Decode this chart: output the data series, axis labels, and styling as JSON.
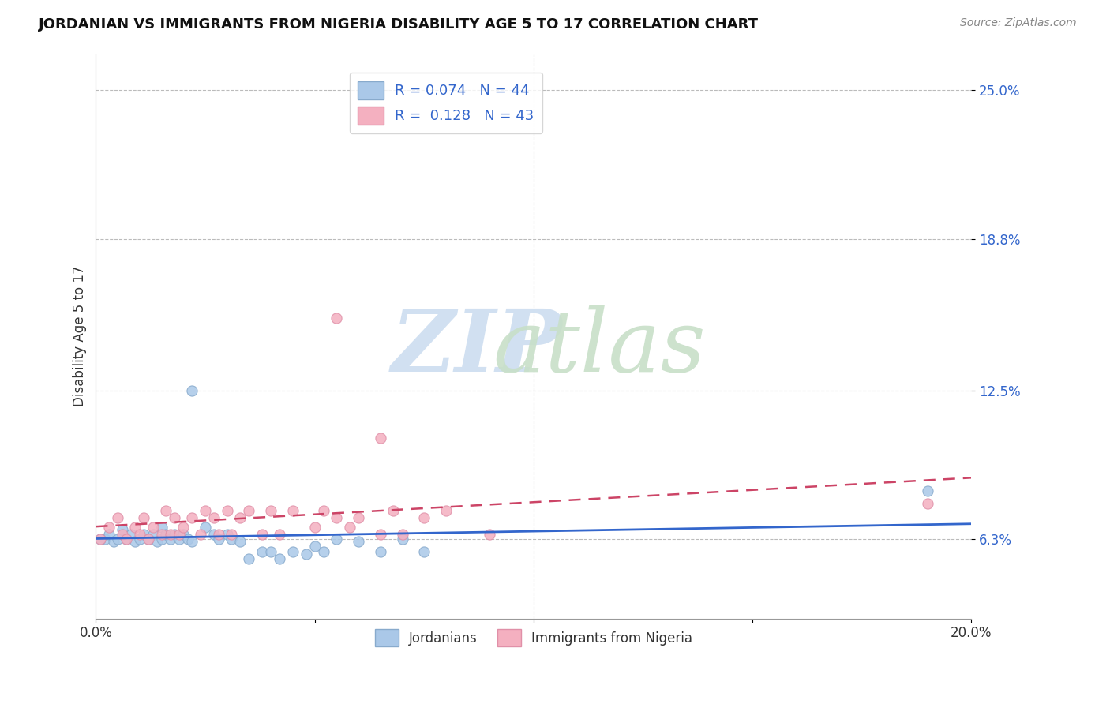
{
  "title": "JORDANIAN VS IMMIGRANTS FROM NIGERIA DISABILITY AGE 5 TO 17 CORRELATION CHART",
  "source": "Source: ZipAtlas.com",
  "ylabel": "Disability Age 5 to 17",
  "xmin": 0.0,
  "xmax": 0.2,
  "ymin": 0.03,
  "ymax": 0.265,
  "yticks": [
    0.063,
    0.125,
    0.188,
    0.25
  ],
  "ytick_labels": [
    "6.3%",
    "12.5%",
    "18.8%",
    "25.0%"
  ],
  "xticks": [
    0.0,
    0.05,
    0.1,
    0.15,
    0.2
  ],
  "xtick_labels": [
    "0.0%",
    "",
    "",
    "",
    "20.0%"
  ],
  "legend_label1": "Jordanians",
  "legend_label2": "Immigrants from Nigeria",
  "blue_r": "0.074",
  "blue_n": "44",
  "pink_r": "0.128",
  "pink_n": "43",
  "blue_scatter_x": [
    0.002,
    0.003,
    0.004,
    0.005,
    0.006,
    0.007,
    0.008,
    0.009,
    0.01,
    0.011,
    0.012,
    0.013,
    0.014,
    0.015,
    0.015,
    0.016,
    0.017,
    0.018,
    0.019,
    0.02,
    0.021,
    0.022,
    0.025,
    0.027,
    0.028,
    0.03,
    0.031,
    0.033,
    0.035,
    0.038,
    0.04,
    0.042,
    0.045,
    0.048,
    0.05,
    0.052,
    0.055,
    0.06,
    0.065,
    0.07,
    0.075,
    0.022,
    0.19,
    0.001
  ],
  "blue_scatter_y": [
    0.063,
    0.065,
    0.062,
    0.063,
    0.067,
    0.063,
    0.065,
    0.062,
    0.063,
    0.065,
    0.063,
    0.065,
    0.062,
    0.068,
    0.063,
    0.065,
    0.063,
    0.065,
    0.063,
    0.065,
    0.063,
    0.062,
    0.068,
    0.065,
    0.063,
    0.065,
    0.063,
    0.062,
    0.055,
    0.058,
    0.058,
    0.055,
    0.058,
    0.057,
    0.06,
    0.058,
    0.063,
    0.062,
    0.058,
    0.063,
    0.058,
    0.125,
    0.083,
    0.063
  ],
  "pink_scatter_x": [
    0.001,
    0.003,
    0.005,
    0.006,
    0.007,
    0.009,
    0.01,
    0.011,
    0.012,
    0.013,
    0.015,
    0.016,
    0.017,
    0.018,
    0.019,
    0.02,
    0.022,
    0.024,
    0.025,
    0.027,
    0.028,
    0.03,
    0.031,
    0.033,
    0.035,
    0.038,
    0.04,
    0.042,
    0.045,
    0.05,
    0.052,
    0.055,
    0.058,
    0.06,
    0.065,
    0.068,
    0.07,
    0.075,
    0.08,
    0.09,
    0.055,
    0.19,
    0.065
  ],
  "pink_scatter_y": [
    0.063,
    0.068,
    0.072,
    0.065,
    0.063,
    0.068,
    0.065,
    0.072,
    0.063,
    0.068,
    0.065,
    0.075,
    0.065,
    0.072,
    0.065,
    0.068,
    0.072,
    0.065,
    0.075,
    0.072,
    0.065,
    0.075,
    0.065,
    0.072,
    0.075,
    0.065,
    0.075,
    0.065,
    0.075,
    0.068,
    0.075,
    0.072,
    0.068,
    0.072,
    0.065,
    0.075,
    0.065,
    0.072,
    0.075,
    0.065,
    0.155,
    0.078,
    0.105
  ]
}
